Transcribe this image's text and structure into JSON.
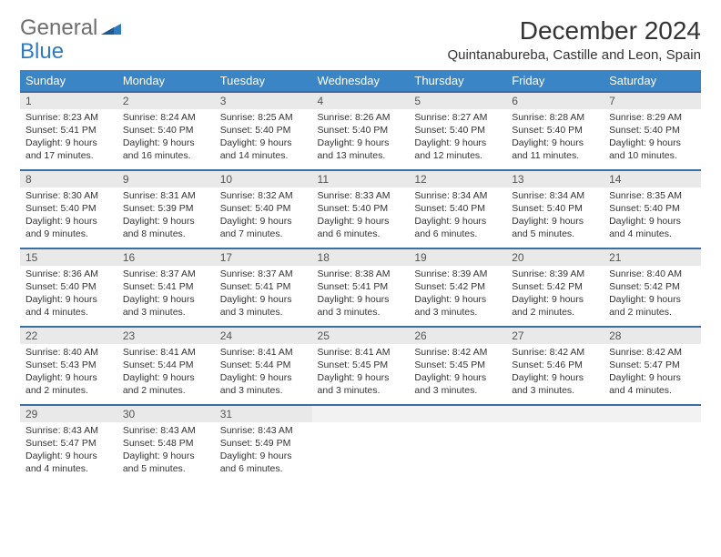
{
  "brand": {
    "part1": "General",
    "part2": "Blue"
  },
  "title": "December 2024",
  "subtitle": "Quintanabureba, Castille and Leon, Spain",
  "colors": {
    "header_bg": "#3a85c6",
    "header_text": "#ffffff",
    "row_border": "#3a6ea5",
    "daynum_bg": "#e9e9e9",
    "brand_gray": "#6e6e6e",
    "brand_blue": "#2f7bbf"
  },
  "dayHeaders": [
    "Sunday",
    "Monday",
    "Tuesday",
    "Wednesday",
    "Thursday",
    "Friday",
    "Saturday"
  ],
  "weeks": [
    [
      {
        "n": "1",
        "sr": "8:23 AM",
        "ss": "5:41 PM",
        "dl": "9 hours and 17 minutes."
      },
      {
        "n": "2",
        "sr": "8:24 AM",
        "ss": "5:40 PM",
        "dl": "9 hours and 16 minutes."
      },
      {
        "n": "3",
        "sr": "8:25 AM",
        "ss": "5:40 PM",
        "dl": "9 hours and 14 minutes."
      },
      {
        "n": "4",
        "sr": "8:26 AM",
        "ss": "5:40 PM",
        "dl": "9 hours and 13 minutes."
      },
      {
        "n": "5",
        "sr": "8:27 AM",
        "ss": "5:40 PM",
        "dl": "9 hours and 12 minutes."
      },
      {
        "n": "6",
        "sr": "8:28 AM",
        "ss": "5:40 PM",
        "dl": "9 hours and 11 minutes."
      },
      {
        "n": "7",
        "sr": "8:29 AM",
        "ss": "5:40 PM",
        "dl": "9 hours and 10 minutes."
      }
    ],
    [
      {
        "n": "8",
        "sr": "8:30 AM",
        "ss": "5:40 PM",
        "dl": "9 hours and 9 minutes."
      },
      {
        "n": "9",
        "sr": "8:31 AM",
        "ss": "5:39 PM",
        "dl": "9 hours and 8 minutes."
      },
      {
        "n": "10",
        "sr": "8:32 AM",
        "ss": "5:40 PM",
        "dl": "9 hours and 7 minutes."
      },
      {
        "n": "11",
        "sr": "8:33 AM",
        "ss": "5:40 PM",
        "dl": "9 hours and 6 minutes."
      },
      {
        "n": "12",
        "sr": "8:34 AM",
        "ss": "5:40 PM",
        "dl": "9 hours and 6 minutes."
      },
      {
        "n": "13",
        "sr": "8:34 AM",
        "ss": "5:40 PM",
        "dl": "9 hours and 5 minutes."
      },
      {
        "n": "14",
        "sr": "8:35 AM",
        "ss": "5:40 PM",
        "dl": "9 hours and 4 minutes."
      }
    ],
    [
      {
        "n": "15",
        "sr": "8:36 AM",
        "ss": "5:40 PM",
        "dl": "9 hours and 4 minutes."
      },
      {
        "n": "16",
        "sr": "8:37 AM",
        "ss": "5:41 PM",
        "dl": "9 hours and 3 minutes."
      },
      {
        "n": "17",
        "sr": "8:37 AM",
        "ss": "5:41 PM",
        "dl": "9 hours and 3 minutes."
      },
      {
        "n": "18",
        "sr": "8:38 AM",
        "ss": "5:41 PM",
        "dl": "9 hours and 3 minutes."
      },
      {
        "n": "19",
        "sr": "8:39 AM",
        "ss": "5:42 PM",
        "dl": "9 hours and 3 minutes."
      },
      {
        "n": "20",
        "sr": "8:39 AM",
        "ss": "5:42 PM",
        "dl": "9 hours and 2 minutes."
      },
      {
        "n": "21",
        "sr": "8:40 AM",
        "ss": "5:42 PM",
        "dl": "9 hours and 2 minutes."
      }
    ],
    [
      {
        "n": "22",
        "sr": "8:40 AM",
        "ss": "5:43 PM",
        "dl": "9 hours and 2 minutes."
      },
      {
        "n": "23",
        "sr": "8:41 AM",
        "ss": "5:44 PM",
        "dl": "9 hours and 2 minutes."
      },
      {
        "n": "24",
        "sr": "8:41 AM",
        "ss": "5:44 PM",
        "dl": "9 hours and 3 minutes."
      },
      {
        "n": "25",
        "sr": "8:41 AM",
        "ss": "5:45 PM",
        "dl": "9 hours and 3 minutes."
      },
      {
        "n": "26",
        "sr": "8:42 AM",
        "ss": "5:45 PM",
        "dl": "9 hours and 3 minutes."
      },
      {
        "n": "27",
        "sr": "8:42 AM",
        "ss": "5:46 PM",
        "dl": "9 hours and 3 minutes."
      },
      {
        "n": "28",
        "sr": "8:42 AM",
        "ss": "5:47 PM",
        "dl": "9 hours and 4 minutes."
      }
    ],
    [
      {
        "n": "29",
        "sr": "8:43 AM",
        "ss": "5:47 PM",
        "dl": "9 hours and 4 minutes."
      },
      {
        "n": "30",
        "sr": "8:43 AM",
        "ss": "5:48 PM",
        "dl": "9 hours and 5 minutes."
      },
      {
        "n": "31",
        "sr": "8:43 AM",
        "ss": "5:49 PM",
        "dl": "9 hours and 6 minutes."
      },
      {
        "empty": true
      },
      {
        "empty": true
      },
      {
        "empty": true
      },
      {
        "empty": true
      }
    ]
  ],
  "labels": {
    "sunrise": "Sunrise:",
    "sunset": "Sunset:",
    "daylight": "Daylight:"
  }
}
